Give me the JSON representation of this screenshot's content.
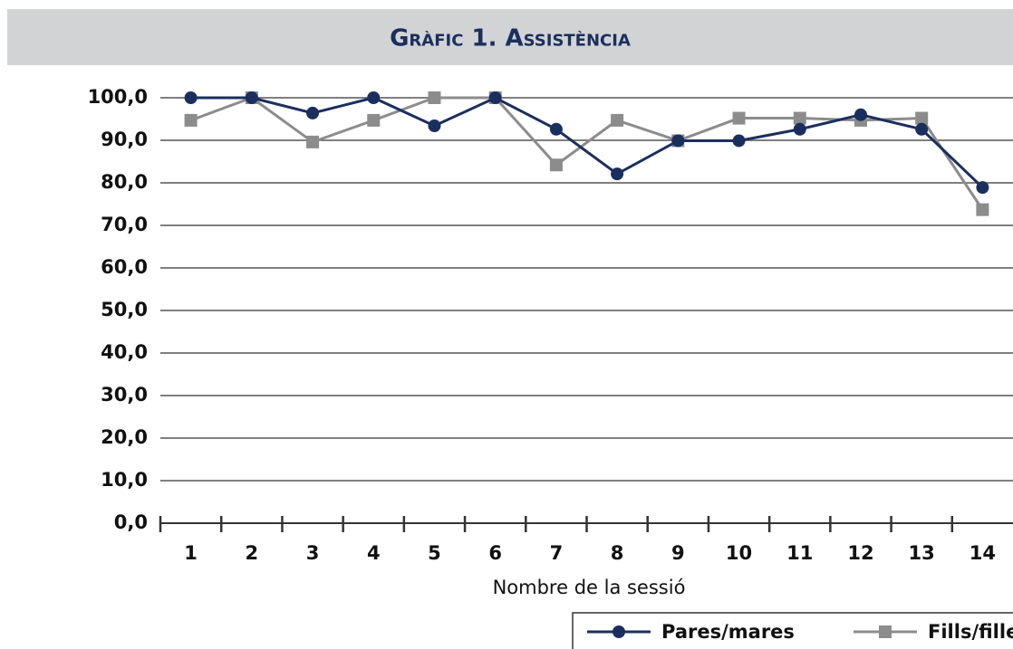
{
  "chart_data": {
    "type": "line",
    "title": "Gràfic 1. Assistència",
    "x_label": "Nombre de la sessió",
    "categories": [
      "1",
      "2",
      "3",
      "4",
      "5",
      "6",
      "7",
      "8",
      "9",
      "10",
      "11",
      "12",
      "13",
      "14"
    ],
    "series": [
      {
        "name": "Pares/mares",
        "color": "#1b2f5e",
        "marker": "circle",
        "values": [
          100,
          100,
          96.4,
          100,
          93.4,
          100,
          92.6,
          82.1,
          89.9,
          89.9,
          92.6,
          96,
          92.6,
          78.9
        ]
      },
      {
        "name": "Fills/filles",
        "color": "#8c8c8c",
        "marker": "square",
        "values": [
          94.7,
          100,
          89.6,
          94.7,
          100,
          100,
          84.2,
          94.7,
          89.9,
          95.2,
          95.2,
          94.7,
          95.2,
          73.7
        ]
      }
    ],
    "ylim": [
      0,
      100
    ],
    "yticks": [
      {
        "value": 0,
        "label": "0,0"
      },
      {
        "value": 10,
        "label": "10,0"
      },
      {
        "value": 20,
        "label": "20,0"
      },
      {
        "value": 30,
        "label": "30,0"
      },
      {
        "value": 40,
        "label": "40,0"
      },
      {
        "value": 50,
        "label": "50,0"
      },
      {
        "value": 60,
        "label": "60,0"
      },
      {
        "value": 70,
        "label": "70,0"
      },
      {
        "value": 80,
        "label": "80,0"
      },
      {
        "value": 90,
        "label": "90,0"
      },
      {
        "value": 100,
        "label": "100,0"
      }
    ],
    "grid": true,
    "legend": "bottom-right"
  }
}
